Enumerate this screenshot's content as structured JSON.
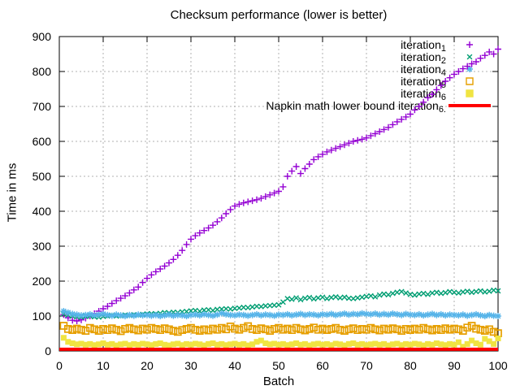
{
  "window": {
    "background": "#ffffff",
    "axis_color": "#000000",
    "grid_color": "#b0b0b0"
  },
  "chart_data": {
    "type": "scatter",
    "title": "Checksum performance (lower is better)",
    "xlabel": "Batch",
    "ylabel": "Time in ms",
    "xlim": [
      0,
      100
    ],
    "ylim": [
      0,
      900
    ],
    "xticks": [
      0,
      10,
      20,
      30,
      40,
      50,
      60,
      70,
      80,
      90,
      100
    ],
    "yticks": [
      0,
      100,
      200,
      300,
      400,
      500,
      600,
      700,
      800,
      900
    ],
    "grid": true,
    "legend_position": "top-right-inside",
    "series": [
      {
        "name": "iteration_1",
        "legend": {
          "text": "iteration",
          "sub": "1",
          "suffix": ""
        },
        "marker": "plus",
        "color": "#9400d3",
        "x_first": 1,
        "x_step": 1,
        "y": [
          104,
          95,
          88,
          86,
          89,
          94,
          100,
          107,
          114,
          121,
          128,
          136,
          144,
          151,
          158,
          166,
          175,
          183,
          196,
          208,
          218,
          227,
          235,
          243,
          252,
          262,
          274,
          288,
          305,
          320,
          330,
          338,
          345,
          352,
          360,
          370,
          381,
          393,
          405,
          415,
          420,
          424,
          427,
          430,
          433,
          437,
          442,
          447,
          452,
          457,
          470,
          500,
          515,
          528,
          508,
          522,
          535,
          548,
          556,
          563,
          570,
          575,
          580,
          585,
          590,
          595,
          600,
          603,
          606,
          610,
          616,
          622,
          628,
          634,
          640,
          648,
          656,
          663,
          670,
          678,
          690,
          700,
          712,
          725,
          735,
          748,
          760,
          772,
          782,
          792,
          800,
          808,
          815,
          822,
          828,
          838,
          846,
          856,
          850,
          864
        ]
      },
      {
        "name": "iteration_2",
        "legend": {
          "text": "iteration",
          "sub": "2",
          "suffix": ""
        },
        "marker": "cross",
        "color": "#009e73",
        "x_first": 1,
        "x_step": 1,
        "y": [
          106,
          103,
          100,
          98,
          97,
          99,
          100,
          98,
          97,
          99,
          100,
          102,
          100,
          101,
          103,
          102,
          104,
          103,
          105,
          106,
          107,
          106,
          108,
          110,
          109,
          111,
          110,
          112,
          113,
          115,
          116,
          114,
          117,
          118,
          116,
          119,
          120,
          121,
          120,
          122,
          123,
          125,
          124,
          126,
          128,
          127,
          129,
          130,
          131,
          132,
          140,
          150,
          148,
          152,
          147,
          151,
          153,
          149,
          152,
          154,
          150,
          153,
          155,
          152,
          154,
          151,
          150,
          152,
          154,
          156,
          158,
          155,
          160,
          163,
          161,
          165,
          168,
          170,
          166,
          162,
          160,
          163,
          165,
          162,
          166,
          168,
          165,
          167,
          170,
          168,
          166,
          169,
          171,
          168,
          170,
          172,
          169,
          171,
          174,
          172
        ]
      },
      {
        "name": "iteration_4",
        "legend": {
          "text": "iteration",
          "sub": "4",
          "suffix": ""
        },
        "marker": "asterisk",
        "color": "#56b4e9",
        "x_first": 1,
        "x_step": 1,
        "y": [
          114,
          110,
          106,
          104,
          102,
          103,
          105,
          102,
          104,
          106,
          103,
          101,
          104,
          102,
          100,
          103,
          101,
          104,
          102,
          103,
          101,
          103,
          100,
          102,
          104,
          101,
          103,
          102,
          100,
          103,
          104,
          102,
          105,
          103,
          101,
          104,
          108,
          105,
          103,
          102,
          104,
          103,
          101,
          103,
          105,
          102,
          104,
          103,
          101,
          104,
          103,
          105,
          102,
          104,
          106,
          103,
          105,
          104,
          102,
          105,
          104,
          106,
          103,
          105,
          107,
          104,
          106,
          105,
          108,
          106,
          105,
          107,
          104,
          106,
          104,
          107,
          105,
          103,
          106,
          104,
          103,
          105,
          102,
          104,
          106,
          103,
          105,
          102,
          104,
          103,
          102,
          104,
          101,
          103,
          105,
          102,
          100,
          103,
          101,
          100
        ]
      },
      {
        "name": "iteration_5",
        "legend": {
          "text": "iteration",
          "sub": "5",
          "suffix": ""
        },
        "marker": "open-square",
        "color": "#e69f00",
        "x_first": 1,
        "x_step": 1,
        "y": [
          72,
          63,
          60,
          64,
          61,
          58,
          66,
          62,
          58,
          63,
          60,
          65,
          61,
          57,
          63,
          66,
          62,
          59,
          64,
          61,
          66,
          63,
          60,
          65,
          62,
          58,
          55,
          60,
          63,
          66,
          61,
          58,
          62,
          59,
          64,
          61,
          66,
          62,
          70,
          64,
          61,
          66,
          71,
          63,
          60,
          65,
          62,
          58,
          63,
          66,
          61,
          64,
          60,
          66,
          62,
          59,
          63,
          67,
          61,
          64,
          60,
          63,
          66,
          61,
          58,
          62,
          65,
          60,
          63,
          61,
          66,
          62,
          59,
          64,
          61,
          65,
          62,
          58,
          63,
          60,
          64,
          61,
          66,
          62,
          59,
          63,
          60,
          65,
          61,
          64,
          62,
          58,
          67,
          72,
          64,
          61,
          58,
          62,
          55,
          51
        ]
      },
      {
        "name": "iteration_6",
        "legend": {
          "text": "iteration",
          "sub": "6",
          "suffix": ""
        },
        "marker": "filled-square",
        "color": "#f0e442",
        "x_first": 1,
        "x_step": 1,
        "y": [
          38,
          26,
          22,
          19,
          21,
          18,
          20,
          17,
          19,
          22,
          18,
          20,
          16,
          19,
          21,
          17,
          20,
          18,
          21,
          19,
          17,
          20,
          22,
          18,
          16,
          19,
          21,
          17,
          20,
          18,
          21,
          19,
          16,
          20,
          22,
          18,
          20,
          17,
          19,
          21,
          18,
          20,
          16,
          19,
          26,
          30,
          22,
          19,
          21,
          18,
          20,
          17,
          19,
          22,
          18,
          20,
          16,
          19,
          21,
          18,
          20,
          17,
          21,
          19,
          16,
          20,
          22,
          18,
          20,
          17,
          19,
          21,
          18,
          20,
          16,
          19,
          21,
          17,
          20,
          18,
          21,
          19,
          16,
          20,
          18,
          22,
          19,
          17,
          20,
          18,
          25,
          12,
          20,
          30,
          22,
          18,
          35,
          28,
          20,
          36
        ]
      },
      {
        "name": "napkin_math_lower_bound_iteration_6",
        "legend": {
          "text": "Napkin math lower bound iteration",
          "sub": "6",
          "suffix": "."
        },
        "marker": "line",
        "color": "#ff0000",
        "line_width": 4,
        "x": [
          0,
          100
        ],
        "y": [
          5,
          5
        ]
      }
    ]
  }
}
